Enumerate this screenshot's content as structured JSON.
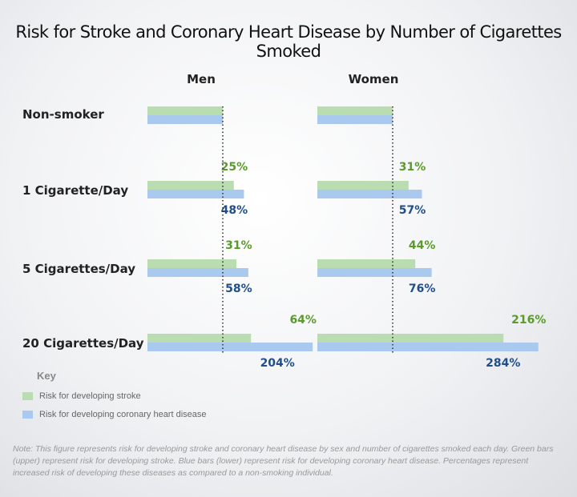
{
  "chart_data": {
    "type": "bar",
    "title": "Risk for Stroke and Coronary Heart Disease by Number of Cigarettes Smoked",
    "groups": [
      "Men",
      "Women"
    ],
    "categories": [
      "Non-smoker",
      "1 Cigarette/Day",
      "5 Cigarettes/Day",
      "20 Cigarettes/Day"
    ],
    "series": [
      {
        "name": "Risk for developing stroke",
        "color": "#b9ddb0",
        "label_color": "#5a9a2a",
        "values": {
          "Men": [
            0,
            25,
            31,
            64
          ],
          "Women": [
            0,
            31,
            44,
            216
          ]
        },
        "labels": {
          "Men": [
            "",
            "25%",
            "31%",
            "64%"
          ],
          "Women": [
            "",
            "31%",
            "44%",
            "216%"
          ]
        }
      },
      {
        "name": "Risk for developing coronary heart disease",
        "color": "#a9c9ef",
        "label_color": "#1f4e8a",
        "values": {
          "Men": [
            0,
            48,
            58,
            204
          ],
          "Women": [
            0,
            57,
            76,
            284
          ]
        },
        "labels": {
          "Men": [
            "",
            "48%",
            "58%",
            "204%"
          ],
          "Women": [
            "",
            "57%",
            "76%",
            "284%"
          ]
        }
      }
    ]
  },
  "key": {
    "title": "Key",
    "items": [
      "Risk for developing stroke",
      "Risk for developing coronary heart disease"
    ]
  },
  "note": "Note: This figure represents risk for developing stroke and coronary heart disease by sex and number of cigarettes smoked each day. Green bars (upper) represent risk for developing stroke. Blue bars (lower) represent risk for developing coronary heart disease. Percentages represent increased risk of developing these diseases as compared to a non-smoking individual."
}
